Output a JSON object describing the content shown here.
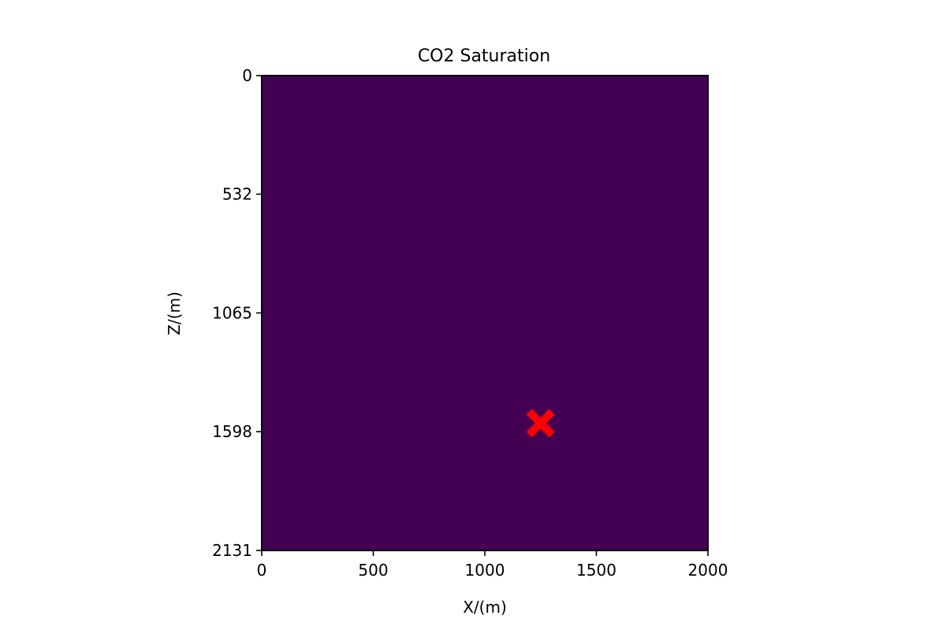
{
  "chart_data": {
    "type": "heatmap",
    "title": "CO2 Saturation",
    "xlabel": "X/(m)",
    "ylabel": "Z/(m)",
    "xlim": [
      0,
      2000
    ],
    "ylim": [
      2131,
      0
    ],
    "y_inverted": true,
    "x_ticks": [
      0,
      500,
      1000,
      1500,
      2000
    ],
    "y_ticks": [
      0,
      532,
      1065,
      1598,
      2131
    ],
    "x_tick_labels": [
      "0",
      "500",
      "1000",
      "1500",
      "2000"
    ],
    "y_tick_labels": [
      "0",
      "532",
      "1065",
      "1598",
      "2131"
    ],
    "field_value": "uniform",
    "field_color": "#440154",
    "grid": false,
    "marker": {
      "x": 1250,
      "z": 1560,
      "symbol": "X",
      "color": "#ff0000"
    }
  }
}
